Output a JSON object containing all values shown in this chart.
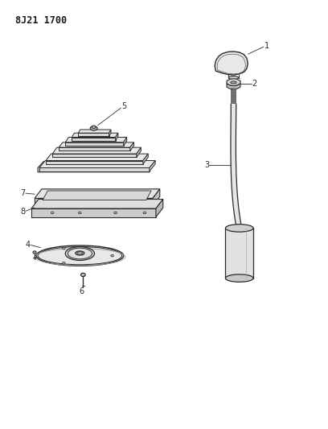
{
  "title": "8J21 1700",
  "background_color": "#ffffff",
  "line_color": "#2a2a2a",
  "label_color": "#1a1a1a",
  "figsize": [
    4.08,
    5.33
  ],
  "dpi": 100
}
